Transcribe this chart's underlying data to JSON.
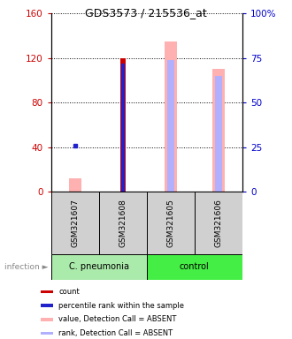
{
  "title": "GDS3573 / 215536_at",
  "samples": [
    "GSM321607",
    "GSM321608",
    "GSM321605",
    "GSM321606"
  ],
  "left_ylim": [
    0,
    160
  ],
  "right_ylim": [
    0,
    100
  ],
  "left_yticks": [
    0,
    40,
    80,
    120,
    160
  ],
  "right_yticks": [
    0,
    25,
    50,
    75,
    100
  ],
  "right_yticklabels": [
    "0",
    "25",
    "50",
    "75",
    "100%"
  ],
  "left_color": "#cc0000",
  "right_color": "#0000cc",
  "absent_values": [
    12,
    null,
    135,
    110
  ],
  "absent_ranks_pct": [
    null,
    null,
    74,
    65
  ],
  "count_vals": [
    null,
    120,
    null,
    null
  ],
  "rank_vals_pct": [
    null,
    72,
    null,
    null
  ],
  "blue_dot_pct": [
    26,
    null,
    null,
    null
  ],
  "count_color": "#cc0000",
  "rank_color": "#2222cc",
  "absent_value_color": "#ffb0b0",
  "absent_rank_color": "#b0b0ff",
  "cpneumonia_color": "#aaeaaa",
  "control_color": "#44ee44",
  "gray_color": "#d0d0d0",
  "legend_items": [
    {
      "color": "#cc0000",
      "label": "count"
    },
    {
      "color": "#2222cc",
      "label": "percentile rank within the sample"
    },
    {
      "color": "#ffb0b0",
      "label": "value, Detection Call = ABSENT"
    },
    {
      "color": "#b0b0ff",
      "label": "rank, Detection Call = ABSENT"
    }
  ]
}
